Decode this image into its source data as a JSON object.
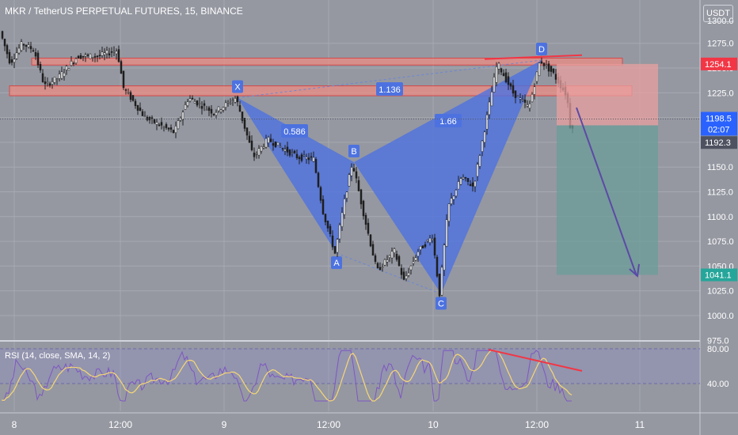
{
  "header": {
    "title": "MKR / TetherUS PERPETUAL FUTURES, 15, BINANCE",
    "currency": "USDT"
  },
  "rsi": {
    "label": "RSI (14, close, SMA, 14, 2)",
    "levels": [
      "80.00",
      "40.00"
    ],
    "line_color": "#7e57c2",
    "ma_color": "#f7d774"
  },
  "chart_data": {
    "type": "candlestick",
    "symbol": "MKR / TetherUS PERPETUAL FUTURES",
    "interval": "15",
    "exchange": "BINANCE",
    "ylim": [
      970,
      1310
    ],
    "y_ticks": [
      "1300.0",
      "1275.0",
      "1250.0",
      "1225.0",
      "1200.0",
      "1175.0",
      "1150.0",
      "1125.0",
      "1100.0",
      "1075.0",
      "1050.0",
      "1025.0",
      "1000.0",
      "975.0"
    ],
    "x_ticks": [
      "8",
      "12:00",
      "9",
      "12:00",
      "10",
      "12:00",
      "11"
    ],
    "price_labels": {
      "target": "1254.1",
      "current": "1198.5",
      "countdown": "02:07",
      "previous": "1192.3",
      "stop": "1041.1"
    },
    "pattern": {
      "points": [
        {
          "label": "X",
          "value": 1220
        },
        {
          "label": "A",
          "value": 1063
        },
        {
          "label": "B",
          "value": 1155
        },
        {
          "label": "C",
          "value": 1022
        },
        {
          "label": "D",
          "value": 1258
        }
      ],
      "ratios": [
        "0.586",
        "1.136",
        "1.66"
      ]
    },
    "resistance_zones": [
      [
        1253,
        1260
      ],
      [
        1222,
        1232
      ]
    ],
    "colors": {
      "pattern_fill": "#4d72e0",
      "zone": "#f28b82",
      "trend_line": "#f23645",
      "arrow": "#5b4aa6",
      "stop_box": "#e9a0a0",
      "target_box": "#6c9c9a",
      "up_candle": "#ffffff",
      "down_candle": "#1e1e1e"
    }
  }
}
